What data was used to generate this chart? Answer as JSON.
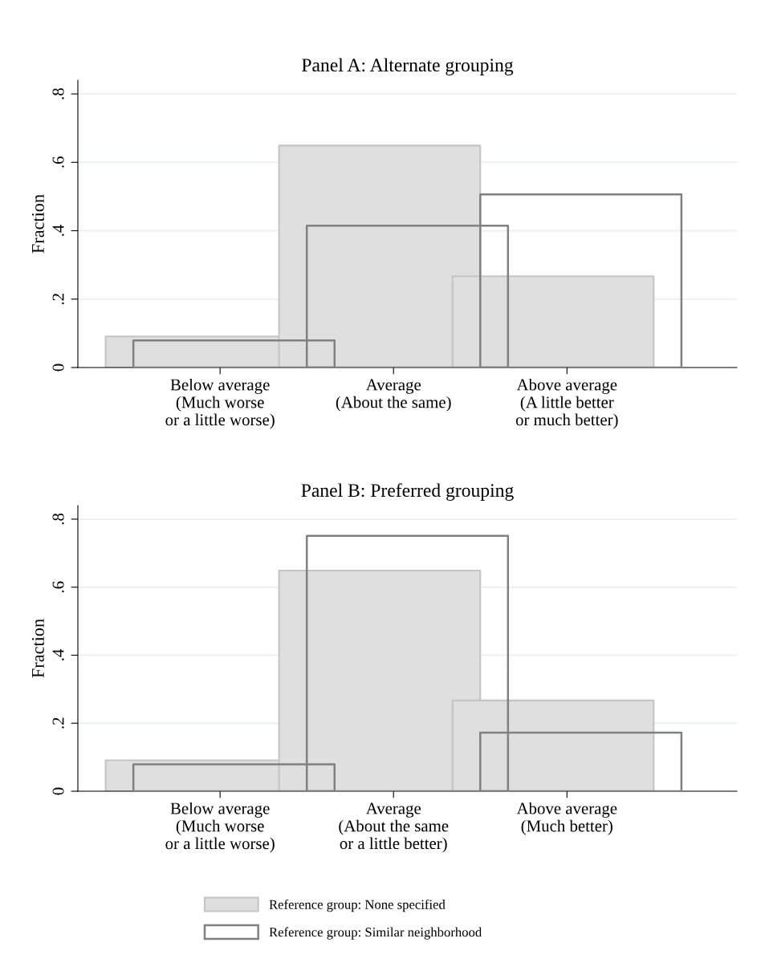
{
  "chart_data": [
    {
      "type": "bar",
      "title": "Panel A: Alternate grouping",
      "ylabel": "Fraction",
      "categories": [
        "Below average\n(Much worse\nor a little worse)",
        "Average\n(About the same)",
        "Above average\n(A little better\nor much better)"
      ],
      "series": [
        {
          "color": "#dfdfdf",
          "values": [
            0.091,
            0.649,
            0.267
          ]
        },
        {
          "color": "#808080",
          "values": [
            0.079,
            0.415,
            0.506
          ]
        }
      ],
      "ylim": [
        0,
        0.84
      ],
      "yticks": [
        0,
        {
          "value": 0.2,
          "label": ".2"
        },
        {
          "value": 0.4,
          "label": ".4"
        },
        {
          "value": 0.6,
          "label": ".6"
        },
        {
          "value": 0.8,
          "label": ".8"
        }
      ],
      "grid": "y"
    },
    {
      "type": "bar",
      "title": "Panel B: Preferred grouping",
      "ylabel": "Fraction",
      "categories": [
        "Below average\n(Much worse\nor a little worse)",
        "Average\n(About the same\nor a little better)",
        "Above average\n(Much better)"
      ],
      "series": [
        {
          "name": "Reference group: None specified",
          "color": "#dfdfdf",
          "values": [
            0.091,
            0.649,
            0.267
          ]
        },
        {
          "name": "Reference group: Similar neighborhood",
          "color": "#808080",
          "values": [
            0.079,
            0.751,
            0.172
          ]
        }
      ],
      "ylim": [
        0,
        0.84
      ],
      "yticks": [
        0,
        {
          "value": 0.2,
          "label": ".2"
        },
        {
          "value": 0.4,
          "label": ".4"
        },
        {
          "value": 0.6,
          "label": ".6"
        },
        {
          "value": 0.8,
          "label": ".8"
        }
      ],
      "grid": "y",
      "legend": "bottom"
    }
  ]
}
